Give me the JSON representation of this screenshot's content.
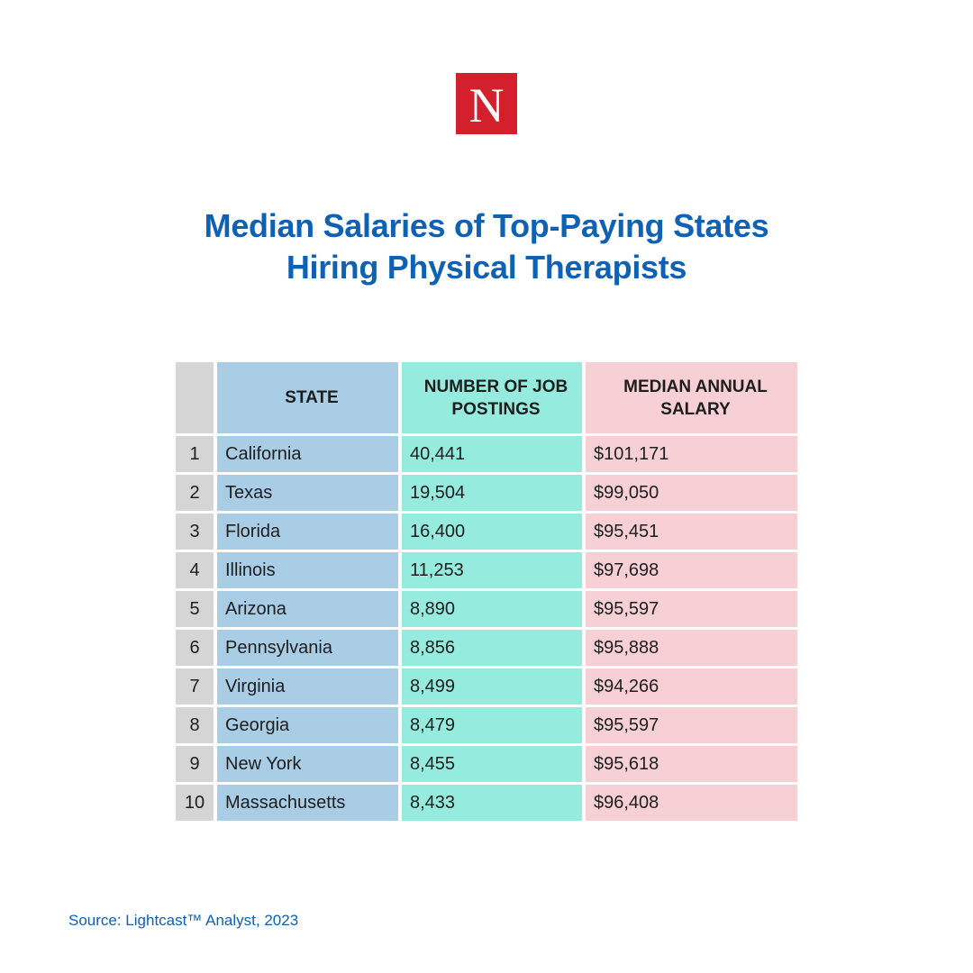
{
  "logo": {
    "letter": "N",
    "color": "#d41f2c"
  },
  "title": {
    "line1": "Median Salaries of Top-Paying States",
    "line2": "Hiring Physical Therapists",
    "color": "#0e61b3"
  },
  "table": {
    "headers": [
      "",
      "STATE",
      "NUMBER OF JOB POSTINGS",
      "MEDIAN ANNUAL SALARY"
    ],
    "rows": [
      {
        "rank": "1",
        "state": "California",
        "postings": "40,441",
        "salary": "$101,171"
      },
      {
        "rank": "2",
        "state": "Texas",
        "postings": "19,504",
        "salary": "$99,050"
      },
      {
        "rank": "3",
        "state": "Florida",
        "postings": "16,400",
        "salary": "$95,451"
      },
      {
        "rank": "4",
        "state": "Illinois",
        "postings": "11,253",
        "salary": "$97,698"
      },
      {
        "rank": "5",
        "state": "Arizona",
        "postings": "8,890",
        "salary": "$95,597"
      },
      {
        "rank": "6",
        "state": "Pennsylvania",
        "postings": "8,856",
        "salary": "$95,888"
      },
      {
        "rank": "7",
        "state": "Virginia",
        "postings": "8,499",
        "salary": "$94,266"
      },
      {
        "rank": "8",
        "state": "Georgia",
        "postings": "8,479",
        "salary": "$95,597"
      },
      {
        "rank": "9",
        "state": "New York",
        "postings": "8,455",
        "salary": "$95,618"
      },
      {
        "rank": "10",
        "state": "Massachusetts",
        "postings": "8,433",
        "salary": "$96,408"
      }
    ],
    "colors": {
      "rank": "#d5d5d5",
      "state": "#a8cde5",
      "postings": "#96ebdf",
      "salary": "#f6d0d5"
    }
  },
  "source": "Source: Lightcast™ Analyst, 2023"
}
